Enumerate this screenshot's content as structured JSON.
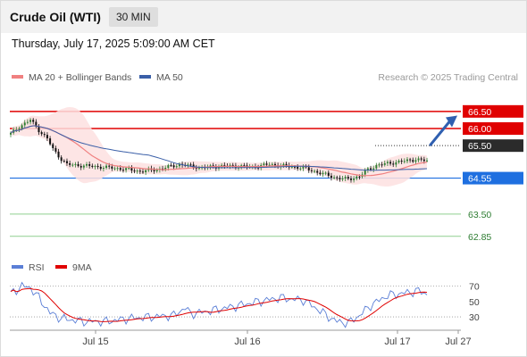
{
  "header": {
    "title": "Crude Oil (WTI)",
    "timeframe": "30 MIN",
    "datetime": "Thursday, July 17, 2025 5:09:00 AM CET"
  },
  "legend": {
    "ma20_label": "MA 20 + Bollinger Bands",
    "ma50_label": "MA 50",
    "rsi_label": "RSI",
    "ma9_label": "9MA",
    "copyright": "Research © 2025 Trading Central"
  },
  "colors": {
    "candle_up": "#2e7d32",
    "candle_down": "#111111",
    "ma20": "#f08080",
    "bollinger_fill": "#fde0e0",
    "ma50": "#3a5fa8",
    "resistance": "#e00000",
    "pivot": "#1e6fe0",
    "support": "#8fcf8f",
    "rsi": "#5b7fd6",
    "rsi_ma9": "#e00000",
    "arrow": "#2f5fb0",
    "current_price_bg": "#2b2b2b"
  },
  "chart_data": [
    {
      "type": "candlestick",
      "title": "",
      "x_labels": [
        "Jul 15",
        "Jul 16",
        "Jul 17",
        "Jul 27"
      ],
      "ylim": [
        62.4,
        67.2
      ],
      "series": [
        {
          "name": "MA 20 + Bollinger Bands",
          "kind": "ma"
        },
        {
          "name": "MA 50",
          "kind": "ma"
        }
      ],
      "resistance_levels": [
        66.5,
        66.0
      ],
      "pivot_level": 64.55,
      "support_levels": [
        63.5,
        62.85
      ],
      "current_price": 65.5,
      "level_labels": [
        "66.50",
        "66.00",
        "65.50",
        "64.55",
        "63.50",
        "62.85"
      ],
      "projection": {
        "direction": "up",
        "target": 66.3
      }
    },
    {
      "type": "line",
      "title": "",
      "series": [
        {
          "name": "RSI"
        },
        {
          "name": "9MA"
        }
      ],
      "ylim": [
        15,
        80
      ],
      "y_ticks": [
        "70",
        "50",
        "30"
      ],
      "dotted_levels": [
        70,
        30
      ]
    }
  ]
}
